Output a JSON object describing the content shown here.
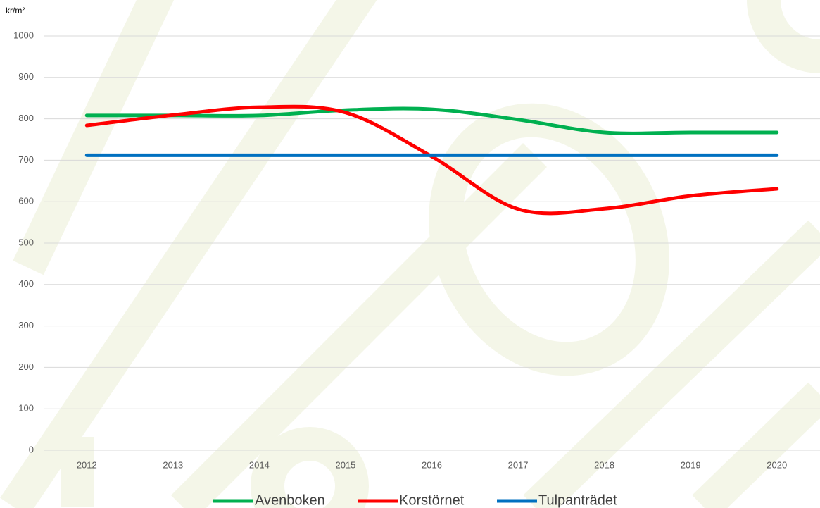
{
  "chart_data": {
    "type": "line",
    "y_label": "kr/m²",
    "categories": [
      "2012",
      "2013",
      "2014",
      "2015",
      "2016",
      "2017",
      "2018",
      "2019",
      "2020"
    ],
    "series": [
      {
        "name": "Avenboken",
        "color": "#00b050",
        "values": [
          808,
          808,
          808,
          821,
          823,
          798,
          767,
          767,
          767
        ]
      },
      {
        "name": "Korstörnet",
        "color": "#ff0000",
        "values": [
          784,
          809,
          828,
          815,
          709,
          582,
          583,
          614,
          631
        ]
      },
      {
        "name": "Tulpanträdet",
        "color": "#0070c0",
        "values": [
          712,
          712,
          712,
          712,
          712,
          712,
          712,
          712,
          712
        ]
      }
    ],
    "ylim": [
      0,
      1000
    ],
    "yticks": [
      0,
      100,
      200,
      300,
      400,
      500,
      600,
      700,
      800,
      900,
      1000
    ],
    "grid": true,
    "smooth": true,
    "legend": "bottom"
  }
}
